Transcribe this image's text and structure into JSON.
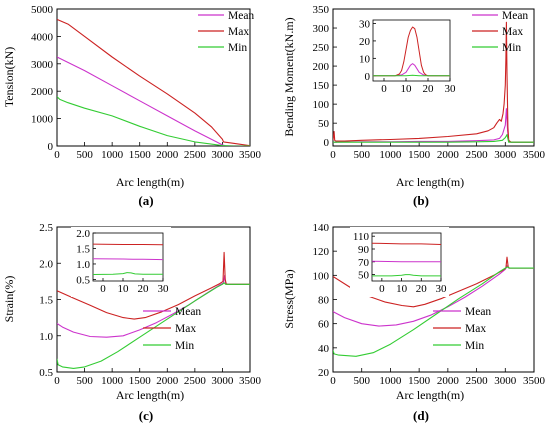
{
  "colors": {
    "mean": "#cc33cc",
    "max": "#cc2222",
    "min": "#33cc33"
  },
  "chart_data": [
    {
      "panel_label": "(a)",
      "type": "line",
      "xlabel": "Arc length(m)",
      "ylabel": "Tension(kN)",
      "xlim": [
        0,
        3500
      ],
      "ylim": [
        0,
        5000
      ],
      "xticks": [
        0,
        500,
        1000,
        1500,
        2000,
        2500,
        3000,
        3500
      ],
      "yticks": [
        0,
        1000,
        2000,
        3000,
        4000,
        5000
      ],
      "legend_position": "top-right",
      "series": [
        {
          "name": "Mean",
          "color_key": "mean",
          "x": [
            0,
            500,
            1000,
            1500,
            2000,
            2500,
            3000,
            3050,
            3500
          ],
          "y": [
            3250,
            2750,
            2200,
            1650,
            1100,
            550,
            40,
            10,
            5
          ]
        },
        {
          "name": "Max",
          "color_key": "max",
          "x": [
            0,
            200,
            500,
            1000,
            1500,
            2000,
            2500,
            2800,
            3000,
            3020,
            3200,
            3500
          ],
          "y": [
            4620,
            4450,
            4000,
            3250,
            2550,
            1900,
            1200,
            700,
            250,
            150,
            100,
            10
          ]
        },
        {
          "name": "Min",
          "color_key": "min",
          "x": [
            0,
            50,
            200,
            500,
            1000,
            1500,
            2000,
            2500,
            3000,
            3200,
            3500
          ],
          "y": [
            1800,
            1700,
            1580,
            1380,
            1100,
            720,
            380,
            150,
            20,
            0,
            0
          ]
        }
      ]
    },
    {
      "panel_label": "(b)",
      "type": "line",
      "xlabel": "Arc length(m)",
      "ylabel": "Bending Moment(kN.m)",
      "xlim": [
        0,
        3500
      ],
      "ylim": [
        -10,
        350
      ],
      "xticks": [
        0,
        500,
        1000,
        1500,
        2000,
        2500,
        3000,
        3500
      ],
      "yticks": [
        0,
        50,
        100,
        150,
        200,
        250,
        300,
        350
      ],
      "legend_position": "top-right",
      "series": [
        {
          "name": "Mean",
          "color_key": "mean",
          "x": [
            0,
            500,
            1000,
            1500,
            2000,
            2500,
            2800,
            2900,
            2950,
            3000,
            3020,
            3040,
            3060,
            3100,
            3500
          ],
          "y": [
            0,
            1,
            1,
            2,
            2,
            4,
            6,
            10,
            20,
            45,
            88,
            30,
            2,
            0,
            0
          ]
        },
        {
          "name": "Max",
          "color_key": "max",
          "x": [
            0,
            20,
            30,
            50,
            200,
            500,
            1000,
            1500,
            2000,
            2500,
            2700,
            2800,
            2850,
            2900,
            2930,
            2960,
            2980,
            3000,
            3010,
            3020,
            3030,
            3045,
            3060,
            3100,
            3500
          ],
          "y": [
            5,
            28,
            5,
            3,
            3,
            5,
            7,
            10,
            15,
            22,
            30,
            38,
            50,
            60,
            55,
            75,
            100,
            150,
            220,
            315,
            180,
            40,
            5,
            0,
            0
          ]
        },
        {
          "name": "Min",
          "color_key": "min",
          "x": [
            0,
            500,
            1000,
            2000,
            2500,
            2800,
            2950,
            3000,
            3030,
            3060,
            3500
          ],
          "y": [
            0,
            0,
            0,
            0,
            1,
            2,
            5,
            12,
            20,
            0,
            0
          ]
        }
      ],
      "inset": {
        "xlim": [
          -5,
          30
        ],
        "ylim": [
          -3,
          32
        ],
        "xticks": [
          0,
          10,
          20,
          30
        ],
        "yticks": [
          0,
          10,
          20,
          30
        ],
        "series": [
          {
            "name": "Mean",
            "color_key": "mean",
            "x": [
              -5,
              5,
              8,
              10,
              11,
              12,
              13,
              14,
              15,
              16,
              18,
              20,
              30
            ],
            "y": [
              0,
              0,
              0.5,
              2,
              4,
              6,
              7,
              6,
              4,
              2,
              0.5,
              0,
              0
            ]
          },
          {
            "name": "Max",
            "color_key": "max",
            "x": [
              -5,
              5,
              7,
              8,
              9,
              10,
              11,
              12,
              13,
              14,
              15,
              16,
              17,
              18,
              19,
              20,
              30
            ],
            "y": [
              0,
              0,
              1,
              3,
              8,
              15,
              22,
              26,
              28,
              27,
              22,
              14,
              6,
              2,
              0.5,
              0,
              0
            ]
          },
          {
            "name": "Min",
            "color_key": "min",
            "x": [
              -5,
              10,
              13,
              16,
              30
            ],
            "y": [
              0,
              0,
              0.3,
              0,
              0
            ]
          }
        ]
      }
    },
    {
      "panel_label": "(c)",
      "type": "line",
      "xlabel": "Arc length(m)",
      "ylabel": "Strain(%)",
      "xlim": [
        0,
        3500
      ],
      "ylim": [
        0.5,
        2.5
      ],
      "xticks": [
        0,
        500,
        1000,
        1500,
        2000,
        2500,
        3000,
        3500
      ],
      "yticks": [
        0.5,
        1.0,
        1.5,
        2.0,
        2.5
      ],
      "ytick_labels": [
        "0.5",
        "1.0",
        "1.5",
        "2.0",
        "2.5"
      ],
      "legend_position": "lower-right",
      "series": [
        {
          "name": "Mean",
          "color_key": "mean",
          "x": [
            0,
            100,
            300,
            600,
            900,
            1200,
            1500,
            1800,
            2100,
            2400,
            2700,
            2950,
            3020,
            3040,
            3060,
            3100,
            3500
          ],
          "y": [
            1.17,
            1.12,
            1.05,
            0.99,
            0.98,
            1.0,
            1.08,
            1.18,
            1.3,
            1.43,
            1.58,
            1.7,
            1.73,
            1.83,
            1.72,
            1.71,
            1.71
          ]
        },
        {
          "name": "Max",
          "color_key": "max",
          "x": [
            0,
            300,
            600,
            900,
            1200,
            1400,
            1600,
            1900,
            2200,
            2500,
            2800,
            2950,
            3010,
            3030,
            3050,
            3070,
            3100,
            3500
          ],
          "y": [
            1.62,
            1.52,
            1.42,
            1.32,
            1.25,
            1.23,
            1.25,
            1.33,
            1.43,
            1.55,
            1.66,
            1.72,
            1.75,
            2.15,
            1.78,
            1.71,
            1.71,
            1.71
          ]
        },
        {
          "name": "Min",
          "color_key": "min",
          "x": [
            0,
            20,
            100,
            300,
            500,
            800,
            1100,
            1500,
            2000,
            2500,
            2900,
            3000,
            3030,
            3060,
            3500
          ],
          "y": [
            0.68,
            0.6,
            0.57,
            0.55,
            0.57,
            0.65,
            0.78,
            0.98,
            1.23,
            1.48,
            1.67,
            1.71,
            1.73,
            1.71,
            1.71
          ]
        }
      ],
      "inset": {
        "xlim": [
          -5,
          30
        ],
        "ylim": [
          0.45,
          2.0
        ],
        "xticks": [
          0,
          10,
          20,
          30
        ],
        "yticks": [
          0.5,
          1.0,
          1.5,
          2.0
        ],
        "ytick_labels": [
          "0.5",
          "1.0",
          "1.5",
          "2.0"
        ],
        "series": [
          {
            "name": "Mean",
            "color_key": "mean",
            "x": [
              -5,
              10,
              15,
              20,
              30
            ],
            "y": [
              1.17,
              1.16,
              1.15,
              1.15,
              1.14
            ]
          },
          {
            "name": "Max",
            "color_key": "max",
            "x": [
              -5,
              10,
              20,
              30
            ],
            "y": [
              1.64,
              1.63,
              1.63,
              1.62
            ]
          },
          {
            "name": "Min",
            "color_key": "min",
            "x": [
              -5,
              5,
              10,
              12,
              14,
              16,
              20,
              30
            ],
            "y": [
              0.66,
              0.67,
              0.69,
              0.72,
              0.71,
              0.68,
              0.67,
              0.67
            ]
          }
        ]
      }
    },
    {
      "panel_label": "(d)",
      "type": "line",
      "xlabel": "Arc length(m)",
      "ylabel": "Stress(MPa)",
      "xlim": [
        0,
        3500
      ],
      "ylim": [
        20,
        140
      ],
      "xticks": [
        0,
        500,
        1000,
        1500,
        2000,
        2500,
        3000,
        3500
      ],
      "yticks": [
        20,
        40,
        60,
        80,
        100,
        120,
        140
      ],
      "legend_position": "lower-right",
      "series": [
        {
          "name": "Mean",
          "color_key": "mean",
          "x": [
            0,
            200,
            500,
            800,
            1100,
            1400,
            1700,
            2000,
            2300,
            2600,
            2900,
            3000,
            3030,
            3060,
            3100,
            3500
          ],
          "y": [
            70,
            65,
            60,
            58,
            59,
            62,
            67,
            74,
            82,
            91,
            101,
            105,
            108,
            106,
            106,
            106
          ]
        },
        {
          "name": "Max",
          "color_key": "max",
          "x": [
            0,
            300,
            600,
            900,
            1200,
            1400,
            1600,
            1900,
            2200,
            2500,
            2800,
            2950,
            3010,
            3030,
            3050,
            3070,
            3100,
            3500
          ],
          "y": [
            99,
            90,
            83,
            78,
            75,
            74,
            76,
            81,
            87,
            93,
            100,
            104,
            106,
            115,
            107,
            106,
            106,
            106
          ]
        },
        {
          "name": "Min",
          "color_key": "min",
          "x": [
            0,
            20,
            100,
            400,
            700,
            1000,
            1400,
            1800,
            2200,
            2600,
            2900,
            3000,
            3040,
            3070,
            3500
          ],
          "y": [
            38,
            35,
            34,
            33,
            36,
            43,
            55,
            68,
            81,
            93,
            103,
            106,
            107,
            106,
            106
          ]
        }
      ],
      "inset": {
        "xlim": [
          -5,
          30
        ],
        "ylim": [
          40,
          115
        ],
        "xticks": [
          0,
          10,
          20,
          30
        ],
        "yticks": [
          50,
          70,
          90,
          110
        ],
        "series": [
          {
            "name": "Mean",
            "color_key": "mean",
            "x": [
              -5,
              10,
              15,
              20,
              30
            ],
            "y": [
              71,
              70,
              70,
              70,
              70
            ]
          },
          {
            "name": "Max",
            "color_key": "max",
            "x": [
              -5,
              10,
              20,
              30
            ],
            "y": [
              99,
              98,
              98,
              97
            ]
          },
          {
            "name": "Min",
            "color_key": "min",
            "x": [
              -5,
              5,
              10,
              12,
              14,
              16,
              20,
              30
            ],
            "y": [
              48,
              48,
              49,
              50,
              50,
              49,
              48,
              48
            ]
          }
        ]
      }
    }
  ]
}
